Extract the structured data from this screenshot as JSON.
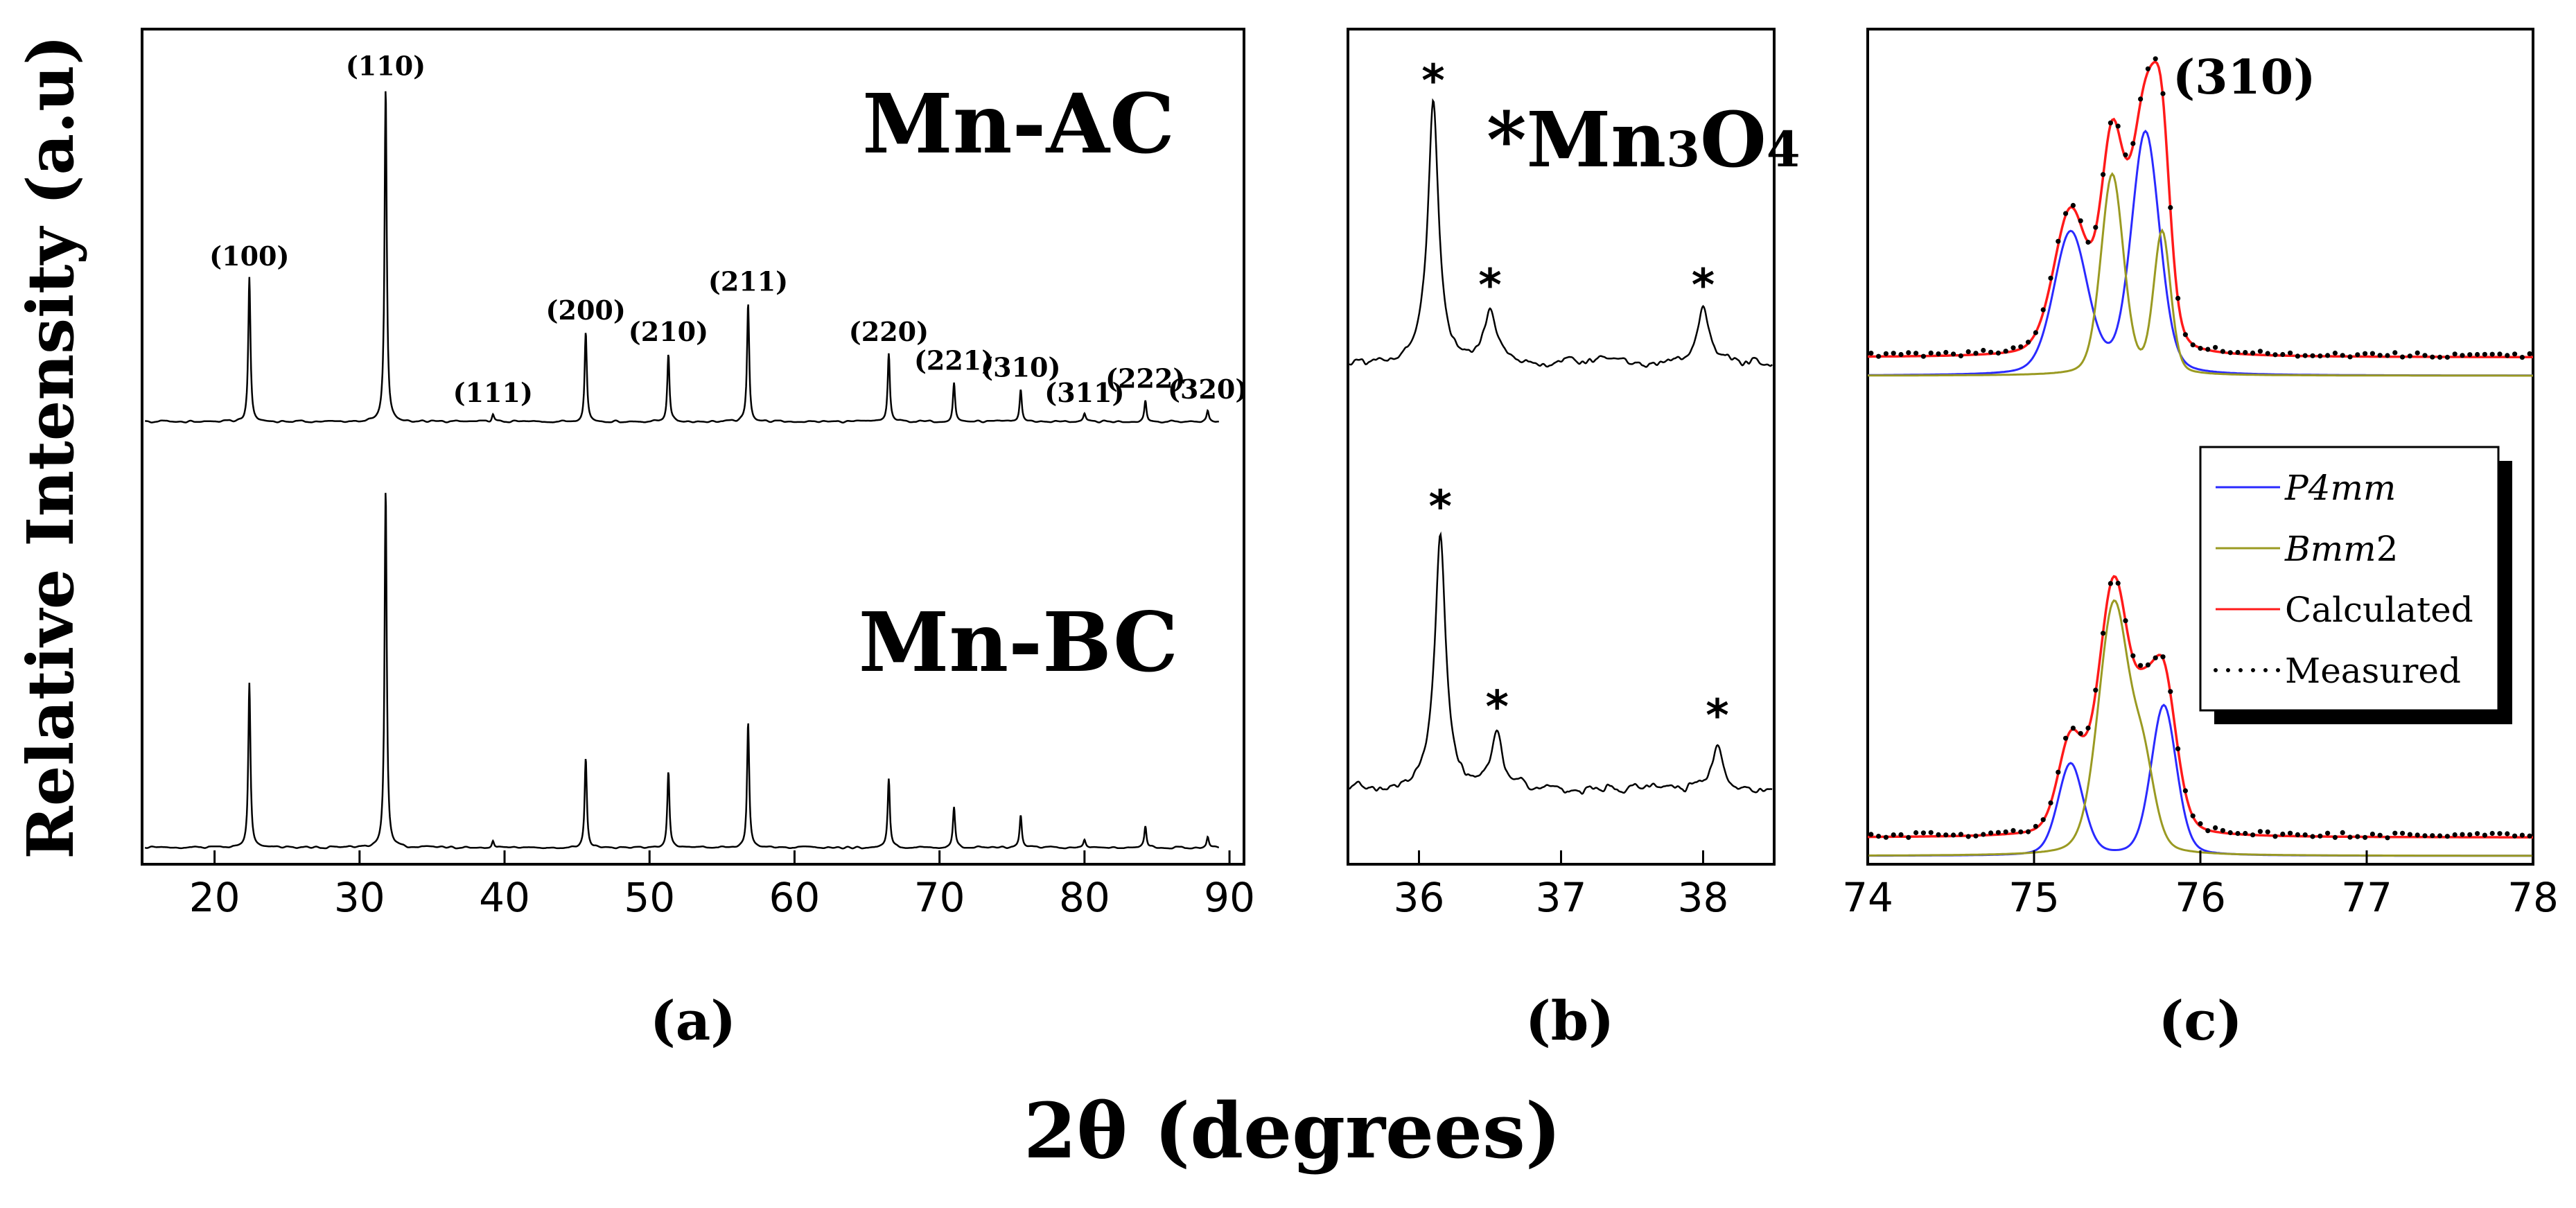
{
  "figure": {
    "ylabel": "Relative Intensity (a.u)",
    "xlabel": "2θ (degrees)",
    "x_prefix": "2",
    "x_theta": "θ",
    "x_suffix": " (degrees)"
  },
  "colors": {
    "axis": "#000000",
    "trace": "#000000",
    "p4mm": "#2a2aff",
    "bmm2": "#9a9a22",
    "calculated": "#ff1a1a",
    "measured": "#000000"
  },
  "chart_data": [
    {
      "id": "a",
      "panel_label": "(a)",
      "type": "line",
      "title": "",
      "xlabel": "2θ (degrees)",
      "ylabel": "Relative Intensity (a.u)",
      "xlim": [
        15,
        91
      ],
      "ylim": [
        0,
        1
      ],
      "xticks": [
        20,
        30,
        40,
        50,
        60,
        70,
        80,
        90
      ],
      "series": [
        {
          "name": "Mn-AC",
          "label": "Mn-AC",
          "offset": 0.53,
          "scale": 0.43,
          "peaks": [
            {
              "x": 22.4,
              "height": 0.4,
              "hkl": "(100)"
            },
            {
              "x": 31.8,
              "height": 0.93,
              "hkl": "(110)"
            },
            {
              "x": 39.2,
              "height": 0.02,
              "hkl": "(111)"
            },
            {
              "x": 45.6,
              "height": 0.25,
              "hkl": "(200)"
            },
            {
              "x": 51.3,
              "height": 0.19,
              "hkl": "(210)"
            },
            {
              "x": 56.8,
              "height": 0.33,
              "hkl": "(211)"
            },
            {
              "x": 66.5,
              "height": 0.19,
              "hkl": "(220)"
            },
            {
              "x": 71.0,
              "height": 0.11,
              "hkl": "(221)"
            },
            {
              "x": 75.6,
              "height": 0.09,
              "hkl": "(310)"
            },
            {
              "x": 80.0,
              "height": 0.02,
              "hkl": "(311)"
            },
            {
              "x": 84.2,
              "height": 0.06,
              "hkl": "(222)"
            },
            {
              "x": 88.5,
              "height": 0.03,
              "hkl": "(320)"
            }
          ]
        },
        {
          "name": "Mn-BC",
          "label": "Mn-BC",
          "offset": 0.02,
          "scale": 0.43,
          "peaks": [
            {
              "x": 22.4,
              "height": 0.46
            },
            {
              "x": 31.8,
              "height": 1.0
            },
            {
              "x": 39.2,
              "height": 0.02
            },
            {
              "x": 45.6,
              "height": 0.25
            },
            {
              "x": 51.3,
              "height": 0.21
            },
            {
              "x": 56.8,
              "height": 0.35
            },
            {
              "x": 66.5,
              "height": 0.19
            },
            {
              "x": 71.0,
              "height": 0.11
            },
            {
              "x": 75.6,
              "height": 0.09
            },
            {
              "x": 80.0,
              "height": 0.02
            },
            {
              "x": 84.2,
              "height": 0.06
            },
            {
              "x": 88.5,
              "height": 0.03
            }
          ]
        }
      ]
    },
    {
      "id": "b",
      "panel_label": "(b)",
      "type": "line",
      "title": "*Mn3O4",
      "title_star": "*",
      "title_main": "Mn",
      "title_sub1": "3",
      "title_o": "O",
      "title_sub2": "4",
      "xlim": [
        35.5,
        38.5
      ],
      "ylim": [
        0,
        1
      ],
      "xticks": [
        36,
        37,
        38
      ],
      "marker": "*",
      "series": [
        {
          "name": "Mn-AC",
          "offset": 0.56,
          "baseline": 0.04,
          "peaks": [
            {
              "x": 36.1,
              "height": 0.31,
              "marked": true
            },
            {
              "x": 36.5,
              "height": 0.065,
              "marked": true
            },
            {
              "x": 38.0,
              "height": 0.065,
              "marked": true
            }
          ]
        },
        {
          "name": "Mn-BC",
          "offset": 0.05,
          "baseline": 0.04,
          "peaks": [
            {
              "x": 36.15,
              "height": 0.31,
              "marked": true
            },
            {
              "x": 36.55,
              "height": 0.07,
              "marked": true
            },
            {
              "x": 38.1,
              "height": 0.06,
              "marked": true
            }
          ]
        }
      ]
    },
    {
      "id": "c",
      "panel_label": "(c)",
      "type": "line",
      "peak_label": "(310)",
      "xlim": [
        74,
        78
      ],
      "ylim": [
        0,
        1
      ],
      "xticks": [
        74,
        75,
        76,
        77,
        78
      ],
      "legend": {
        "position": "center-right",
        "entries": [
          {
            "name": "P4mm",
            "label_italic": "P4mm",
            "label_plain": "",
            "color": "#2a2aff",
            "style": "solid"
          },
          {
            "name": "Bmm2",
            "label_italic": "Bmm",
            "label_plain": "2",
            "color": "#9a9a22",
            "style": "solid"
          },
          {
            "name": "Calculated",
            "label_italic": "",
            "label_plain": "Calculated",
            "color": "#ff1a1a",
            "style": "solid"
          },
          {
            "name": "Measured",
            "label_italic": "",
            "label_plain": "Measured",
            "color": "#000000",
            "style": "dotted"
          }
        ]
      },
      "series": [
        {
          "name": "Mn-AC",
          "offset": 0.585,
          "components": [
            {
              "name": "P4mm",
              "peaks": [
                {
                  "x": 75.22,
                  "height": 0.17,
                  "width": 0.12
                },
                {
                  "x": 75.67,
                  "height": 0.29,
                  "width": 0.1
                }
              ]
            },
            {
              "name": "Bmm2",
              "peaks": [
                {
                  "x": 75.47,
                  "height": 0.24,
                  "width": 0.08
                },
                {
                  "x": 75.77,
                  "height": 0.17,
                  "width": 0.06
                }
              ]
            }
          ]
        },
        {
          "name": "Mn-BC",
          "offset": 0.01,
          "components": [
            {
              "name": "P4mm",
              "peaks": [
                {
                  "x": 75.22,
                  "height": 0.11,
                  "width": 0.09
                },
                {
                  "x": 75.78,
                  "height": 0.18,
                  "width": 0.09
                }
              ]
            },
            {
              "name": "Bmm2",
              "peaks": [
                {
                  "x": 75.48,
                  "height": 0.3,
                  "width": 0.11
                },
                {
                  "x": 75.66,
                  "height": 0.09,
                  "width": 0.08
                }
              ]
            }
          ]
        }
      ]
    }
  ]
}
